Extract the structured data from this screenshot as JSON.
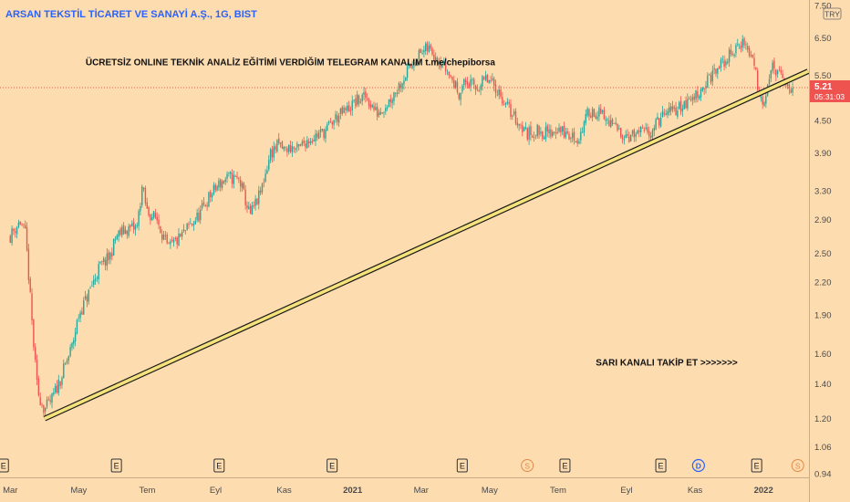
{
  "header": {
    "symbol_title": "ARSAN TEKSTİL TİCARET VE SANAYİ A.Ş., 1G, BIST"
  },
  "currency_badge": "TRY",
  "colors": {
    "background": "#fddcb0",
    "up": "#26a69a",
    "down": "#ef5350",
    "trendline": "#f5e27a",
    "trendline_edge": "#1a1a1a",
    "axis_text": "#4a4a4a",
    "title_text": "#2962ff",
    "price_badge": "#ef5350"
  },
  "chart_data": {
    "type": "candlestick",
    "title": "ARSAN TEKSTİL TİCARET VE SANAYİ A.Ş., 1G, BIST",
    "scale": "log",
    "ylim": [
      0.94,
      7.5
    ],
    "y_ticks": [
      "7.50",
      "6.50",
      "5.50",
      "4.50",
      "3.90",
      "3.30",
      "2.90",
      "2.50",
      "2.20",
      "1.90",
      "1.60",
      "1.40",
      "1.20",
      "1.06",
      "0.94"
    ],
    "x_ticks": [
      "Mar",
      "May",
      "Tem",
      "Eyl",
      "Kas",
      "2021",
      "Mar",
      "May",
      "Tem",
      "Eyl",
      "Kas",
      "2022"
    ],
    "x_tick_months": [
      0,
      2,
      4,
      6,
      8,
      10,
      12,
      14,
      16,
      18,
      20,
      22
    ],
    "month_range": [
      -0.3,
      23.3
    ],
    "price_path_months": [
      0,
      0.15,
      0.3,
      0.45,
      0.55,
      0.7,
      0.8,
      1.0,
      1.2,
      1.5,
      1.8,
      2.0,
      2.3,
      2.6,
      2.9,
      3.1,
      3.4,
      3.7,
      3.85,
      4.0,
      4.3,
      4.6,
      4.9,
      5.2,
      5.5,
      5.8,
      6.1,
      6.4,
      6.7,
      7.0,
      7.3,
      7.6,
      7.85,
      8.0,
      8.2,
      8.4,
      8.6,
      8.9,
      9.2,
      9.5,
      9.8,
      10.1,
      10.4,
      10.7,
      11.0,
      11.3,
      11.6,
      11.9,
      12.2,
      12.4,
      12.55,
      12.7,
      12.9,
      13.1,
      13.3,
      13.6,
      13.9,
      14.2,
      14.5,
      14.8,
      15.1,
      15.4,
      15.7,
      16.0,
      16.3,
      16.6,
      16.9,
      17.2,
      17.5,
      17.8,
      18.1,
      18.4,
      18.7,
      19.0,
      19.3,
      19.6,
      19.9,
      20.2,
      20.5,
      20.8,
      21.1,
      21.4,
      21.7,
      21.9,
      22.0,
      22.1,
      22.25,
      22.4,
      22.55,
      22.7,
      22.85
    ],
    "price_path_values": [
      2.7,
      2.8,
      2.88,
      2.7,
      2.2,
      1.6,
      1.35,
      1.25,
      1.3,
      1.45,
      1.65,
      1.9,
      2.1,
      2.35,
      2.45,
      2.7,
      2.78,
      2.8,
      3.35,
      3.0,
      2.9,
      2.55,
      2.65,
      2.8,
      2.95,
      3.2,
      3.4,
      3.5,
      3.45,
      2.95,
      3.25,
      3.9,
      4.05,
      3.95,
      4.0,
      3.95,
      4.1,
      4.2,
      4.3,
      4.55,
      4.7,
      4.9,
      5.0,
      4.65,
      4.85,
      5.2,
      5.6,
      6.0,
      6.2,
      6.05,
      5.9,
      5.7,
      5.4,
      5.1,
      5.35,
      5.2,
      5.4,
      5.2,
      4.8,
      4.5,
      4.25,
      4.3,
      4.25,
      4.35,
      4.2,
      4.15,
      4.7,
      4.65,
      4.45,
      4.3,
      4.2,
      4.25,
      4.3,
      4.55,
      4.7,
      4.8,
      4.95,
      5.2,
      5.5,
      5.8,
      6.1,
      6.4,
      5.9,
      5.0,
      4.9,
      5.3,
      5.7,
      5.6,
      5.35,
      5.25,
      5.21
    ],
    "candle_count": 470,
    "trendline": {
      "start": [
        1.0,
        1.2
      ],
      "end": [
        23.3,
        5.6
      ]
    },
    "current_price": {
      "value": 5.21,
      "label": "5.21",
      "countdown": "05:31:03"
    },
    "event_markers": [
      {
        "month": -0.2,
        "label": "E",
        "kind": "earnings"
      },
      {
        "month": 3.1,
        "label": "E",
        "kind": "earnings"
      },
      {
        "month": 6.1,
        "label": "E",
        "kind": "earnings"
      },
      {
        "month": 9.4,
        "label": "E",
        "kind": "earnings"
      },
      {
        "month": 13.2,
        "label": "E",
        "kind": "earnings"
      },
      {
        "month": 15.1,
        "label": "S",
        "kind": "split"
      },
      {
        "month": 16.2,
        "label": "E",
        "kind": "earnings"
      },
      {
        "month": 19.0,
        "label": "E",
        "kind": "earnings"
      },
      {
        "month": 20.1,
        "label": "D",
        "kind": "dividend"
      },
      {
        "month": 21.8,
        "label": "E",
        "kind": "earnings"
      },
      {
        "month": 23.0,
        "label": "S",
        "kind": "split"
      }
    ],
    "annotations": [
      {
        "text": "ÜCRETSİZ ONLINE TEKNİK ANALİZ EĞİTİMİ  VERDİĞİM TELEGRAM KANALIM  t.me/chepiborsa",
        "month": 2.2,
        "value": 5.75
      },
      {
        "text": "SARI KANALI TAKİP ET >>>>>>>",
        "month": 17.1,
        "value": 1.52
      }
    ]
  }
}
